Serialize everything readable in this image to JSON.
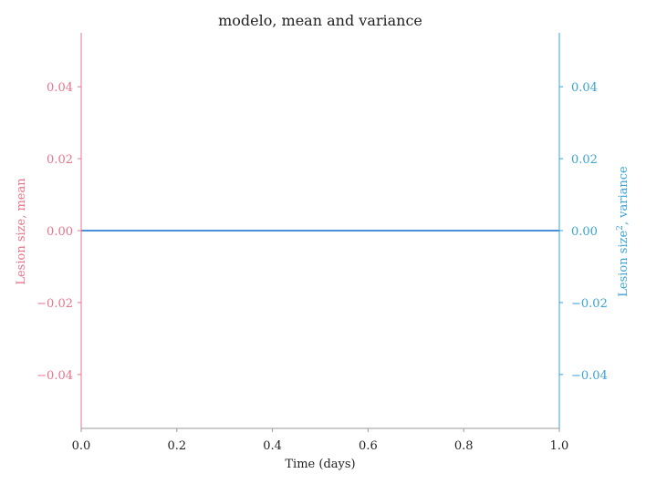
{
  "chart_data": {
    "type": "line",
    "title": "modelo, mean and variance",
    "xlabel": "Time (days)",
    "ylabel_left": "Lesion size, mean",
    "ylabel_right_prefix": "Lesion size",
    "ylabel_right_superscript": "2",
    "ylabel_right_suffix": ", variance",
    "xlim": [
      0.0,
      1.0
    ],
    "ylim_left": [
      -0.055,
      0.055
    ],
    "ylim_right": [
      -0.055,
      0.055
    ],
    "x_ticks": [
      0.0,
      0.2,
      0.4,
      0.6,
      0.8,
      1.0
    ],
    "x_tick_labels": [
      "0.0",
      "0.2",
      "0.4",
      "0.6",
      "0.8",
      "1.0"
    ],
    "y_ticks": [
      -0.04,
      -0.02,
      0.0,
      0.02,
      0.04
    ],
    "y_tick_labels": [
      "−0.04",
      "−0.02",
      "0.00",
      "0.02",
      "0.04"
    ],
    "grid": false,
    "series": [
      {
        "axis": "left",
        "color": "#e8748c",
        "x": [
          0.0,
          1.0
        ],
        "y": [
          0.0,
          0.0
        ]
      },
      {
        "axis": "right",
        "color": "#4a90d9",
        "x": [
          0.0,
          1.0
        ],
        "y": [
          0.0,
          0.0
        ]
      }
    ],
    "colors": {
      "left_axis": "#e8748c",
      "right_axis": "#3ba3d6",
      "bottom_axis": "#999999",
      "text": "#222222"
    }
  }
}
